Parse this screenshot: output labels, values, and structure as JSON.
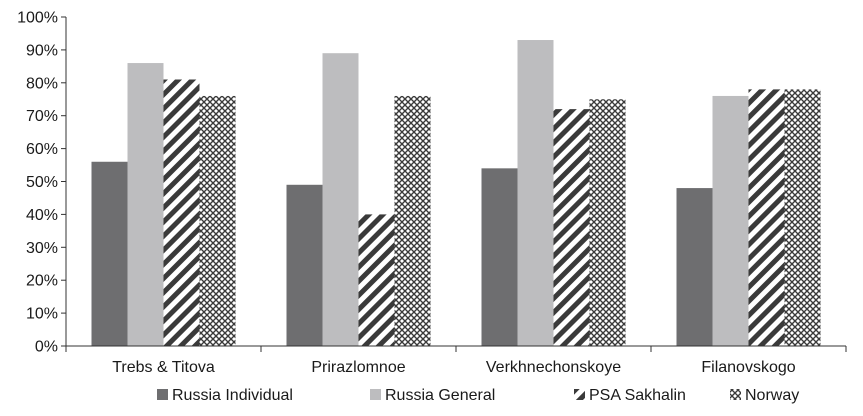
{
  "chart_data": {
    "type": "bar",
    "title": "",
    "xlabel": "",
    "ylabel": "",
    "categories": [
      "Trebs & Titova",
      "Prirazlomnoe",
      "Verkhnechonskoye",
      "Filanovskogo"
    ],
    "ylim": [
      0,
      100
    ],
    "yticks": [
      "0%",
      "10%",
      "20%",
      "30%",
      "40%",
      "50%",
      "60%",
      "70%",
      "80%",
      "90%",
      "100%"
    ],
    "grid": false,
    "legend_position": "bottom",
    "series": [
      {
        "name": "Russia Individual",
        "values": [
          56,
          49,
          54,
          48
        ],
        "color": "#6e6e70",
        "pattern": "solid"
      },
      {
        "name": "Russia General",
        "values": [
          86,
          89,
          93,
          76
        ],
        "color": "#bdbdbf",
        "pattern": "solid"
      },
      {
        "name": "PSA Sakhalin",
        "values": [
          81,
          40,
          72,
          78
        ],
        "color": "#3a3a3a",
        "pattern": "diagonal-stripes"
      },
      {
        "name": "Norway",
        "values": [
          76,
          76,
          75,
          78
        ],
        "color": "#3a3a3a",
        "pattern": "crosshatch"
      }
    ]
  }
}
